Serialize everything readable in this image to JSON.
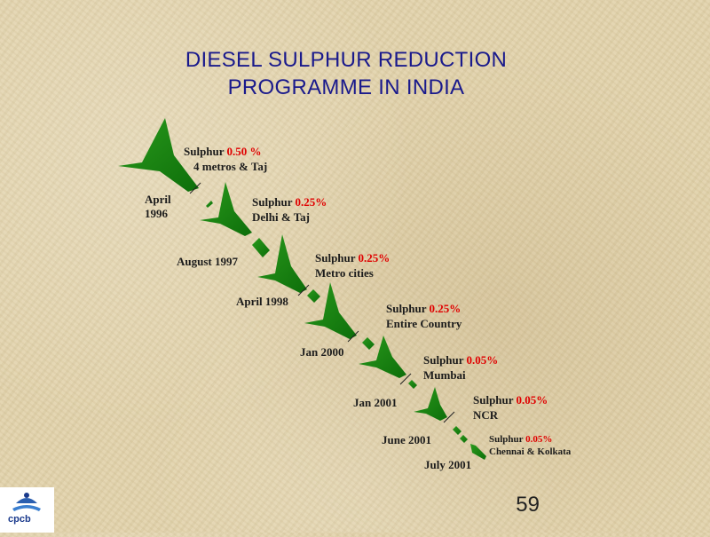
{
  "title": {
    "line1": "DIESEL SULPHUR REDUCTION",
    "line2": "PROGRAMME IN INDIA"
  },
  "steps": [
    {
      "date": "April\n1996",
      "prefix": "Sulphur ",
      "value": "0.50 %",
      "region": "4 metros & Taj"
    },
    {
      "date": "August 1997",
      "prefix": "Sulphur ",
      "value": "0.25%",
      "region": "Delhi & Taj"
    },
    {
      "date": "April 1998",
      "prefix": "Sulphur ",
      "value": "0.25%",
      "region": "Metro cities"
    },
    {
      "date": "Jan 2000",
      "prefix": "Sulphur ",
      "value": "0.25%",
      "region": "Entire Country"
    },
    {
      "date": "Jan 2001",
      "prefix": "Sulphur ",
      "value": "0.05%",
      "region": "Mumbai"
    },
    {
      "date": "June 2001",
      "prefix": "Sulphur ",
      "value": "0.05%",
      "region": "NCR"
    },
    {
      "date": "July 2001",
      "prefix": "Sulphur ",
      "value": "0.05%",
      "region": "Chennai & Kolkata"
    }
  ],
  "page_number": "59",
  "logo": {
    "text": "cpcb"
  },
  "colors": {
    "title": "#1a1a8c",
    "arrow": "#1e8c14",
    "value": "#e00000",
    "background": "#e2d3ac"
  }
}
